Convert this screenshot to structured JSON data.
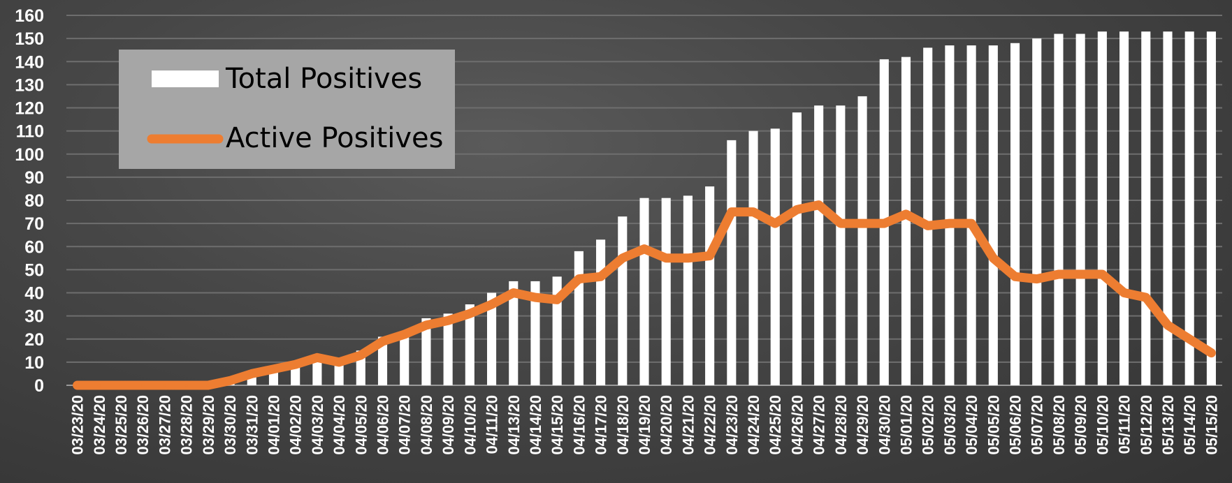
{
  "chart_data": {
    "type": "bar",
    "categories": [
      "03/23/20",
      "03/24/20",
      "03/25/20",
      "03/26/20",
      "03/27/20",
      "03/28/20",
      "03/29/20",
      "03/30/20",
      "03/31/20",
      "04/01/20",
      "04/02/20",
      "04/03/20",
      "04/04/20",
      "04/05/20",
      "04/06/20",
      "04/07/20",
      "04/08/20",
      "04/09/20",
      "04/10/20",
      "04/11/20",
      "04/13/20",
      "04/14/20",
      "04/15/20",
      "04/16/20",
      "04/17/20",
      "04/18/20",
      "04/19/20",
      "04/20/20",
      "04/21/20",
      "04/22/20",
      "04/23/20",
      "04/24/20",
      "04/25/20",
      "04/26/20",
      "04/27/20",
      "04/28/20",
      "04/29/20",
      "04/30/20",
      "05/01/20",
      "05/02/20",
      "05/03/20",
      "05/04/20",
      "05/05/20",
      "05/06/20",
      "05/07/20",
      "05/08/20",
      "05/09/20",
      "05/10/20",
      "05/11/20",
      "05/12/20",
      "05/13/20",
      "05/14/20",
      "05/15/20"
    ],
    "series": [
      {
        "name": "Total Positives",
        "type": "bar",
        "color": "#ffffff",
        "values": [
          0,
          0,
          0,
          0,
          0,
          0,
          0,
          1,
          5,
          8,
          10,
          12,
          10,
          15,
          21,
          23,
          29,
          31,
          35,
          40,
          45,
          45,
          47,
          58,
          63,
          73,
          81,
          81,
          82,
          86,
          106,
          110,
          111,
          118,
          121,
          121,
          125,
          141,
          142,
          146,
          147,
          147,
          147,
          148,
          150,
          152,
          152,
          153,
          153,
          153,
          153,
          153,
          153
        ]
      },
      {
        "name": "Active Positives",
        "type": "line",
        "color": "#ed7d31",
        "values": [
          0,
          0,
          0,
          0,
          0,
          0,
          0,
          2,
          5,
          7,
          9,
          12,
          10,
          13,
          19,
          22,
          26,
          28,
          31,
          35,
          40,
          38,
          37,
          46,
          47,
          55,
          59,
          55,
          55,
          56,
          75,
          75,
          70,
          76,
          78,
          70,
          70,
          70,
          74,
          69,
          70,
          70,
          55,
          47,
          46,
          48,
          48,
          48,
          40,
          38,
          26,
          20,
          14
        ]
      }
    ],
    "ylim": [
      0,
      160
    ],
    "yticks": [
      0,
      10,
      20,
      30,
      40,
      50,
      60,
      70,
      80,
      90,
      100,
      110,
      120,
      130,
      140,
      150,
      160
    ],
    "grid": true,
    "legend": "top-left"
  }
}
